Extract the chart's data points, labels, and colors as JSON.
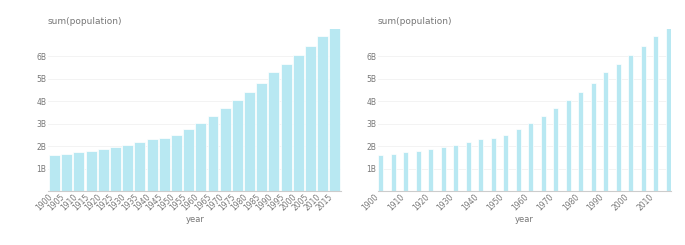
{
  "years": [
    1900,
    1905,
    1910,
    1915,
    1920,
    1925,
    1930,
    1935,
    1940,
    1945,
    1950,
    1955,
    1960,
    1965,
    1970,
    1975,
    1980,
    1985,
    1990,
    1995,
    2000,
    2005,
    2010,
    2015
  ],
  "population": [
    1600000000.0,
    1650000000.0,
    1750000000.0,
    1800000000.0,
    1860000000.0,
    1950000000.0,
    2070000000.0,
    2200000000.0,
    2300000000.0,
    2350000000.0,
    2520000000.0,
    2770000000.0,
    3020000000.0,
    3330000000.0,
    3680000000.0,
    4070000000.0,
    4430000000.0,
    4830000000.0,
    5300000000.0,
    5670000000.0,
    6070000000.0,
    6450000000.0,
    6890000000.0,
    7350000000.0
  ],
  "bar_color": "#b8e8f2",
  "background_color": "#ffffff",
  "ylabel": "sum(population)",
  "xlabel": "year",
  "ylim": [
    0,
    7200000000.0
  ],
  "yticks": [
    1000000000.0,
    2000000000.0,
    3000000000.0,
    4000000000.0,
    5000000000.0,
    6000000000.0
  ],
  "text_color": "#777777",
  "spine_color": "#cccccc",
  "title_fontsize": 6.5,
  "tick_fontsize": 5.5,
  "label_fontsize": 6.0
}
